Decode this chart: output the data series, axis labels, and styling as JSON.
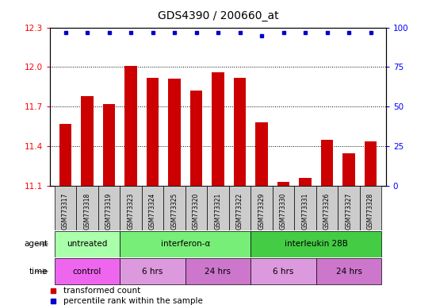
{
  "title": "GDS4390 / 200660_at",
  "samples": [
    "GSM773317",
    "GSM773318",
    "GSM773319",
    "GSM773323",
    "GSM773324",
    "GSM773325",
    "GSM773320",
    "GSM773321",
    "GSM773322",
    "GSM773329",
    "GSM773330",
    "GSM773331",
    "GSM773326",
    "GSM773327",
    "GSM773328"
  ],
  "transformed_count": [
    11.57,
    11.78,
    11.72,
    12.01,
    11.92,
    11.91,
    11.82,
    11.96,
    11.92,
    11.58,
    11.13,
    11.16,
    11.45,
    11.35,
    11.44
  ],
  "percentile_rank": [
    97,
    97,
    97,
    97,
    97,
    97,
    97,
    97,
    97,
    95,
    97,
    97,
    97,
    97,
    97
  ],
  "ylim_left": [
    11.1,
    12.3
  ],
  "ylim_right": [
    0,
    100
  ],
  "yticks_left": [
    11.1,
    11.4,
    11.7,
    12.0,
    12.3
  ],
  "yticks_right": [
    0,
    25,
    50,
    75,
    100
  ],
  "bar_color": "#cc0000",
  "dot_color": "#0000cc",
  "gridline_y": [
    11.4,
    11.7,
    12.0
  ],
  "agent_groups": [
    {
      "label": "untreated",
      "start": 0,
      "end": 3,
      "color": "#aaffaa"
    },
    {
      "label": "interferon-α",
      "start": 3,
      "end": 9,
      "color": "#77ee77"
    },
    {
      "label": "interleukin 28B",
      "start": 9,
      "end": 15,
      "color": "#44cc44"
    }
  ],
  "time_groups": [
    {
      "label": "control",
      "start": 0,
      "end": 3,
      "color": "#ee66ee"
    },
    {
      "label": "6 hrs",
      "start": 3,
      "end": 6,
      "color": "#dd99dd"
    },
    {
      "label": "24 hrs",
      "start": 6,
      "end": 9,
      "color": "#cc77cc"
    },
    {
      "label": "6 hrs",
      "start": 9,
      "end": 12,
      "color": "#dd99dd"
    },
    {
      "label": "24 hrs",
      "start": 12,
      "end": 15,
      "color": "#cc77cc"
    }
  ],
  "legend_bar_color": "#cc0000",
  "legend_dot_color": "#0000cc",
  "plot_bg": "#ffffff",
  "sample_box_bg": "#cccccc",
  "bar_width": 0.55
}
